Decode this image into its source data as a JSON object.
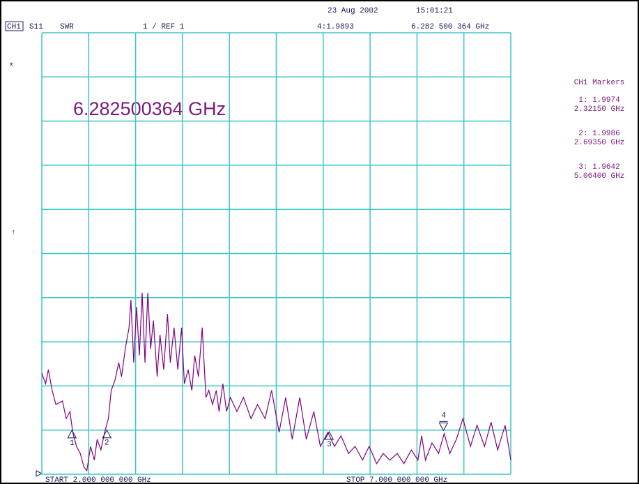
{
  "chart_data": {
    "type": "line",
    "date": "23 Aug 2002",
    "time": "15:01:21",
    "channel": "CH1",
    "parameter": "S11",
    "format": "SWR",
    "scale_label": "1  / REF 1",
    "freq_display": "6.282500364 GHz",
    "markers_title": "CH1 Markers",
    "start_label": "START 2.000 000 000 GHz",
    "stop_label": "STOP 7.000 000 000 GHz",
    "annotations": [
      "*",
      "↑"
    ],
    "xlim": [
      2,
      7
    ],
    "ylim": [
      1,
      11
    ],
    "xticks": [
      2,
      2.5,
      3,
      3.5,
      4,
      4.5,
      5,
      5.5,
      6,
      6.5,
      7
    ],
    "yticks": [
      1,
      2,
      3,
      4,
      5,
      6,
      7,
      8,
      9,
      10,
      11
    ],
    "grid": true,
    "grid_color": "#3cc6c6",
    "x": [
      2.0,
      2.04,
      2.07,
      2.11,
      2.15,
      2.22,
      2.26,
      2.3,
      2.33,
      2.37,
      2.41,
      2.45,
      2.48,
      2.52,
      2.56,
      2.59,
      2.63,
      2.67,
      2.71,
      2.74,
      2.78,
      2.82,
      2.85,
      2.89,
      2.93,
      2.95,
      2.98,
      3.01,
      3.04,
      3.07,
      3.1,
      3.13,
      3.16,
      3.19,
      3.23,
      3.26,
      3.3,
      3.34,
      3.37,
      3.41,
      3.45,
      3.49,
      3.52,
      3.56,
      3.6,
      3.63,
      3.67,
      3.71,
      3.75,
      3.78,
      3.82,
      3.86,
      3.89,
      3.93,
      3.97,
      4.01,
      4.08,
      4.15,
      4.23,
      4.3,
      4.38,
      4.45,
      4.53,
      4.6,
      4.67,
      4.75,
      4.82,
      4.9,
      4.97,
      5.05,
      5.12,
      5.19,
      5.27,
      5.34,
      5.42,
      5.49,
      5.57,
      5.64,
      5.71,
      5.79,
      5.86,
      5.94,
      6.01,
      6.05,
      6.09,
      6.16,
      6.23,
      6.29,
      6.35,
      6.42,
      6.49,
      6.57,
      6.64,
      6.72,
      6.79,
      6.86,
      6.94,
      7.0
    ],
    "series": [
      {
        "color": "#800080",
        "values": [
          3.29,
          3.05,
          3.37,
          2.9,
          2.58,
          2.66,
          2.26,
          2.42,
          1.95,
          1.63,
          1.47,
          1.16,
          1.08,
          1.63,
          1.32,
          1.79,
          1.55,
          1.95,
          2.26,
          2.9,
          3.13,
          3.53,
          3.21,
          3.84,
          4.32,
          4.95,
          3.53,
          4.79,
          3.69,
          5.11,
          3.53,
          5.11,
          3.84,
          4.48,
          3.21,
          4.16,
          3.37,
          4.63,
          3.53,
          4.32,
          3.37,
          4.32,
          3.05,
          3.37,
          2.9,
          3.69,
          3.21,
          4.32,
          2.74,
          2.9,
          2.58,
          2.9,
          2.42,
          3.05,
          2.42,
          2.74,
          2.42,
          2.74,
          2.26,
          2.58,
          2.26,
          2.9,
          1.95,
          2.74,
          1.79,
          2.74,
          1.79,
          2.42,
          1.63,
          1.95,
          1.63,
          1.87,
          1.47,
          1.63,
          1.32,
          1.63,
          1.24,
          1.47,
          1.32,
          1.47,
          1.24,
          1.55,
          1.32,
          1.87,
          1.32,
          1.71,
          1.47,
          1.92,
          1.47,
          1.79,
          2.26,
          1.63,
          2.11,
          1.63,
          2.18,
          1.55,
          2.11,
          1.32
        ]
      }
    ],
    "markers": [
      {
        "label": "1",
        "value": 1.9974,
        "freq": 2.3215,
        "value_label": "1: 1.9974",
        "freq_label": "2.32150 GHz"
      },
      {
        "label": "2",
        "value": 1.9986,
        "freq": 2.6935,
        "value_label": "2: 1.9986",
        "freq_label": "2.69350 GHz"
      },
      {
        "label": "3",
        "value": 1.9642,
        "freq": 5.064,
        "value_label": "3: 1.9642",
        "freq_label": "5.06400 GHz"
      },
      {
        "label": "4",
        "value": 1.9893,
        "freq": 6.282500364,
        "value_label": "4:1.9893",
        "freq_label": "6.282 500 364 GHz"
      }
    ]
  }
}
